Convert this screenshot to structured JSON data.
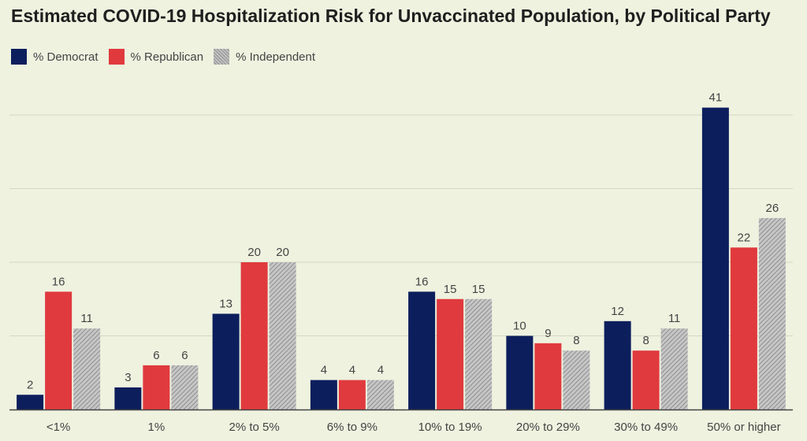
{
  "chart_data": {
    "type": "bar",
    "title": "Estimated COVID-19 Hospitalization Risk for Unvaccinated Population, by Political Party",
    "categories": [
      "<1%",
      "1%",
      "2% to 5%",
      "6% to 9%",
      "10% to 19%",
      "20% to 29%",
      "30% to 49%",
      "50% or higher"
    ],
    "series": [
      {
        "name": "% Democrat",
        "color": "#0c1e5c",
        "pattern": "solid",
        "values": [
          2,
          3,
          13,
          4,
          16,
          10,
          12,
          41
        ]
      },
      {
        "name": "% Republican",
        "color": "#e03a3e",
        "pattern": "solid",
        "values": [
          16,
          6,
          20,
          4,
          15,
          9,
          8,
          22
        ]
      },
      {
        "name": "% Independent",
        "color": "#b0b0b0",
        "pattern": "hatched",
        "values": [
          11,
          6,
          20,
          4,
          15,
          8,
          11,
          26
        ]
      }
    ],
    "ylim": [
      0,
      40
    ],
    "grid": true,
    "legend_position": "top-left",
    "data_labels": true
  }
}
